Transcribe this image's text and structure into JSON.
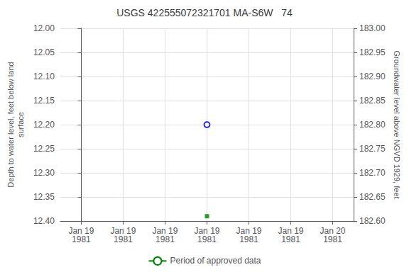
{
  "chart_data": {
    "type": "scatter",
    "title": "USGS 422555072321701 MA-S6W   74",
    "ylabel": "Depth to water level, feet below land\nsurface",
    "y2label": "Groundwater level above NGVD 1929, feet",
    "categories": [
      "Jan 19\n1981",
      "Jan 19\n1981",
      "Jan 19\n1981",
      "Jan 19\n1981",
      "Jan 19\n1981",
      "Jan 19\n1981",
      "Jan 20\n1981"
    ],
    "ylim": [
      12.4,
      12.0
    ],
    "yticks": [
      {
        "value": 12.0,
        "label": "12.00"
      },
      12.05,
      {
        "value": 12.1,
        "label": "12.10"
      },
      12.15,
      {
        "value": 12.2,
        "label": "12.20"
      },
      12.25,
      {
        "value": 12.3,
        "label": "12.30"
      },
      12.35,
      {
        "value": 12.4,
        "label": "12.40"
      }
    ],
    "y2lim": [
      182.6,
      183.0
    ],
    "y2ticks": [
      {
        "value": 183.0,
        "label": "183.00"
      },
      182.95,
      {
        "value": 182.9,
        "label": "182.90"
      },
      182.85,
      {
        "value": 182.8,
        "label": "182.80"
      },
      182.75,
      {
        "value": 182.7,
        "label": "182.70"
      },
      182.65,
      {
        "value": 182.6,
        "label": "182.60"
      }
    ],
    "series": [
      {
        "type": "scatter",
        "color": "#0000cc",
        "marker": "circle",
        "values": [
          null,
          null,
          null,
          12.2,
          null,
          null,
          null
        ]
      },
      {
        "type": "scatter",
        "color": "#008000",
        "marker": "square",
        "values": [
          null,
          null,
          null,
          12.39,
          null,
          null,
          null
        ]
      },
      {
        "type": "line",
        "name": "Period of approved data",
        "color": "#008000",
        "values": [
          null,
          null,
          null,
          null,
          null,
          null,
          null
        ]
      }
    ],
    "grid": true,
    "legend": "bottom"
  }
}
